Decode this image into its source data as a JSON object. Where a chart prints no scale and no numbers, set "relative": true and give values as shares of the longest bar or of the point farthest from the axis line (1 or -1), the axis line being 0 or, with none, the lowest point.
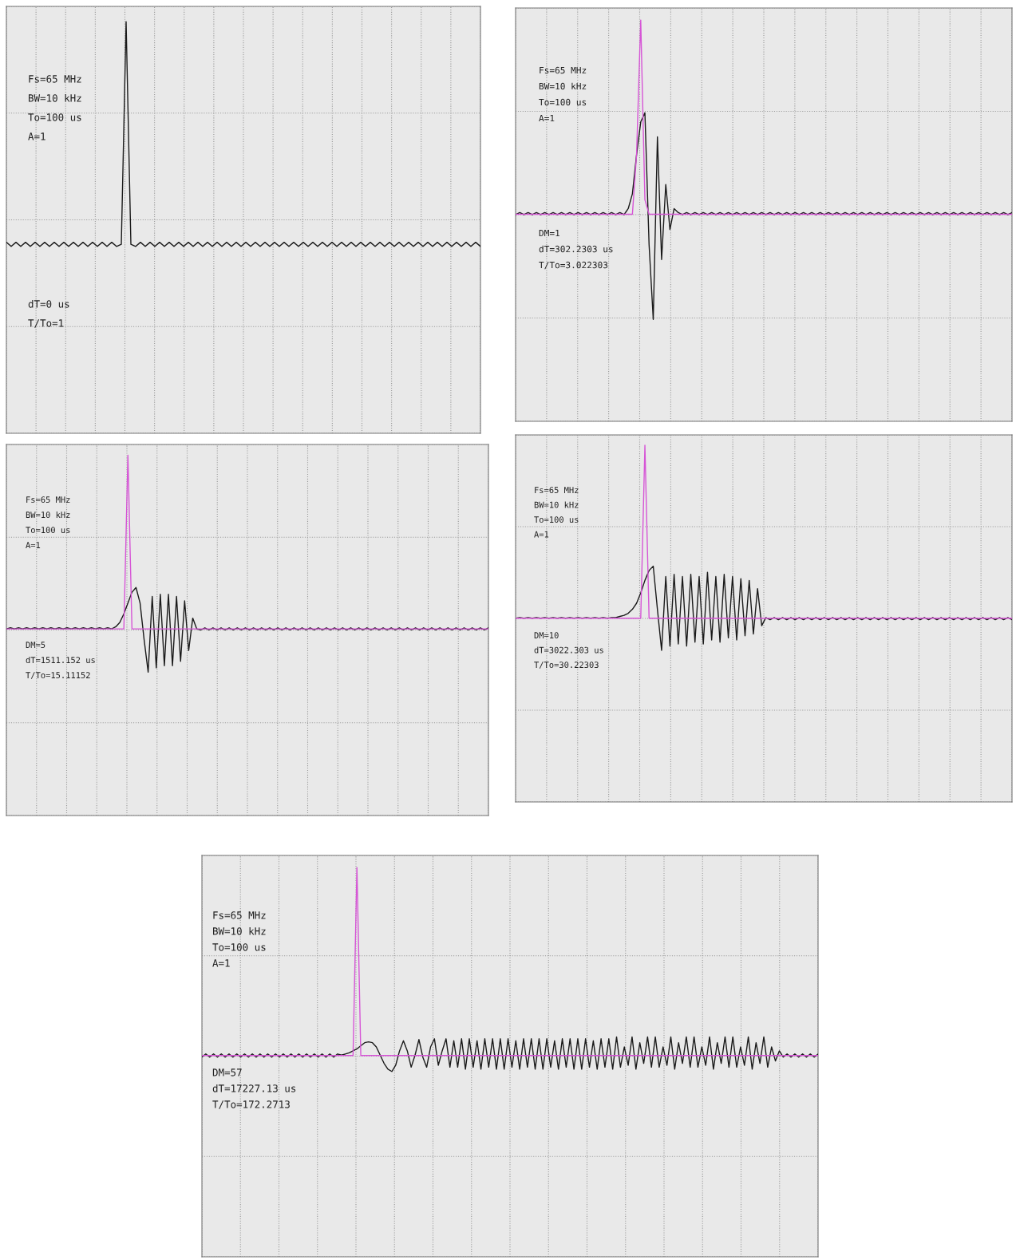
{
  "chart_data": [
    {
      "type": "line",
      "relative": true,
      "grid": true,
      "tick_labels": false,
      "categories": [
        null,
        null,
        null,
        null,
        null,
        null,
        null,
        null,
        null,
        null,
        null,
        null,
        null,
        null,
        null,
        null,
        null,
        null,
        null,
        null,
        null,
        null,
        null,
        null,
        null,
        null,
        null,
        null,
        null,
        null,
        null,
        null,
        null,
        null,
        null,
        null,
        null,
        null,
        null,
        null,
        null,
        null,
        null,
        null,
        null,
        null,
        null,
        null,
        null,
        null,
        null,
        null,
        null,
        null,
        null,
        null,
        null,
        null,
        null,
        null,
        null,
        null,
        null,
        null,
        null,
        null,
        null,
        null,
        null,
        null,
        null,
        null,
        null,
        null,
        null,
        null,
        null,
        null,
        null,
        null,
        null,
        null,
        null,
        null,
        null,
        null,
        null,
        null,
        null,
        null,
        null,
        null,
        null,
        null,
        null,
        null,
        null,
        null,
        null,
        null
      ],
      "series": [
        {
          "color": "#1a1a1a",
          "values": [
            0.464,
            0.454,
            0.464,
            0.454,
            0.464,
            0.454,
            0.464,
            0.454,
            0.464,
            0.454,
            0.464,
            0.454,
            0.464,
            0.454,
            0.464,
            0.454,
            0.464,
            0.454,
            0.464,
            0.454,
            0.464,
            0.454,
            0.464,
            0.454,
            0.459,
            1.0,
            0.459,
            0.454,
            0.464,
            0.454,
            0.464,
            0.454,
            0.464,
            0.454,
            0.464,
            0.454,
            0.464,
            0.454,
            0.464,
            0.454,
            0.464,
            0.454,
            0.464,
            0.454,
            0.464,
            0.454,
            0.464,
            0.454,
            0.464,
            0.454,
            0.464,
            0.454,
            0.464,
            0.454,
            0.464,
            0.454,
            0.464,
            0.454,
            0.464,
            0.454,
            0.464,
            0.454,
            0.464,
            0.454,
            0.464,
            0.454,
            0.464,
            0.454,
            0.464,
            0.454,
            0.464,
            0.454,
            0.464,
            0.454,
            0.464,
            0.454,
            0.464,
            0.454,
            0.464,
            0.454,
            0.464,
            0.454,
            0.464,
            0.454,
            0.464,
            0.454,
            0.464,
            0.454,
            0.464,
            0.454,
            0.464,
            0.454,
            0.464,
            0.454,
            0.464,
            0.454,
            0.464,
            0.454,
            0.464,
            0.454
          ]
        }
      ],
      "annotations": [
        "Fs=65 MHz",
        "BW=10 kHz",
        "To=100 us",
        "A=1",
        "dT=0 us",
        "T/To=1"
      ]
    },
    {
      "type": "line",
      "relative": true,
      "grid": true,
      "tick_labels": false,
      "categories": [
        null,
        null,
        null,
        null,
        null,
        null,
        null,
        null,
        null,
        null,
        null,
        null,
        null,
        null,
        null,
        null,
        null,
        null,
        null,
        null,
        null,
        null,
        null,
        null,
        null,
        null,
        null,
        null,
        null,
        null,
        null,
        null,
        null,
        null,
        null,
        null,
        null,
        null,
        null,
        null,
        null,
        null,
        null,
        null,
        null,
        null,
        null,
        null,
        null,
        null,
        null,
        null,
        null,
        null,
        null,
        null,
        null,
        null,
        null,
        null,
        null,
        null,
        null,
        null,
        null,
        null,
        null,
        null,
        null,
        null,
        null,
        null,
        null,
        null,
        null,
        null,
        null,
        null,
        null,
        null,
        null,
        null,
        null,
        null,
        null,
        null,
        null,
        null,
        null,
        null,
        null,
        null,
        null,
        null,
        null,
        null,
        null,
        null,
        null,
        null,
        null,
        null,
        null,
        null,
        null,
        null,
        null,
        null,
        null,
        null,
        null,
        null,
        null,
        null,
        null,
        null,
        null,
        null,
        null,
        null
      ],
      "series": [
        {
          "color": "#1a1a1a",
          "values": [
            0.515,
            0.52,
            0.515,
            0.52,
            0.515,
            0.52,
            0.515,
            0.52,
            0.515,
            0.52,
            0.515,
            0.52,
            0.515,
            0.52,
            0.515,
            0.52,
            0.515,
            0.52,
            0.515,
            0.52,
            0.515,
            0.52,
            0.515,
            0.52,
            0.515,
            0.52,
            0.515,
            0.53,
            0.567,
            0.664,
            0.746,
            0.769,
            0.44,
            0.254,
            0.709,
            0.403,
            0.59,
            0.478,
            0.53,
            0.52,
            0.515,
            0.52,
            0.515,
            0.52,
            0.515,
            0.52,
            0.515,
            0.52,
            0.515,
            0.52,
            0.515,
            0.52,
            0.515,
            0.52,
            0.515,
            0.52,
            0.515,
            0.52,
            0.515,
            0.52,
            0.515,
            0.52,
            0.515,
            0.52,
            0.515,
            0.52,
            0.515,
            0.52,
            0.515,
            0.52,
            0.515,
            0.52,
            0.515,
            0.52,
            0.515,
            0.52,
            0.515,
            0.52,
            0.515,
            0.52,
            0.515,
            0.52,
            0.515,
            0.52,
            0.515,
            0.52,
            0.515,
            0.52,
            0.515,
            0.52,
            0.515,
            0.52,
            0.515,
            0.52,
            0.515,
            0.52,
            0.515,
            0.52,
            0.515,
            0.52,
            0.515,
            0.52,
            0.515,
            0.52,
            0.515,
            0.52,
            0.515,
            0.52,
            0.515,
            0.52,
            0.515,
            0.52,
            0.515,
            0.52,
            0.515,
            0.52,
            0.515,
            0.52,
            0.515,
            0.52
          ]
        },
        {
          "color": "#d655d6",
          "values": [
            0.516,
            0.516,
            0.516,
            0.516,
            0.516,
            0.516,
            0.516,
            0.516,
            0.516,
            0.516,
            0.516,
            0.516,
            0.516,
            0.516,
            0.516,
            0.516,
            0.516,
            0.516,
            0.516,
            0.516,
            0.516,
            0.516,
            0.516,
            0.516,
            0.516,
            0.516,
            0.516,
            0.516,
            0.516,
            0.664,
            1.0,
            0.552,
            0.516,
            0.516,
            0.516,
            0.516,
            0.516,
            0.516,
            0.516,
            0.516,
            0.516,
            0.516,
            0.516,
            0.516,
            0.516,
            0.516,
            0.516,
            0.516,
            0.516,
            0.516,
            0.516,
            0.516,
            0.516,
            0.516,
            0.516,
            0.516,
            0.516,
            0.516,
            0.516,
            0.516,
            0.516,
            0.516,
            0.516,
            0.516,
            0.516,
            0.516,
            0.516,
            0.516,
            0.516,
            0.516,
            0.516,
            0.516,
            0.516,
            0.516,
            0.516,
            0.516,
            0.516,
            0.516,
            0.516,
            0.516,
            0.516,
            0.516,
            0.516,
            0.516,
            0.516,
            0.516,
            0.516,
            0.516,
            0.516,
            0.516,
            0.516,
            0.516,
            0.516,
            0.516,
            0.516,
            0.516,
            0.516,
            0.516,
            0.516,
            0.516,
            0.516,
            0.516,
            0.516,
            0.516,
            0.516,
            0.516,
            0.516,
            0.516,
            0.516,
            0.516,
            0.516,
            0.516,
            0.516,
            0.516,
            0.516,
            0.516,
            0.516,
            0.516,
            0.516,
            0.516
          ]
        }
      ],
      "annotations": [
        "Fs=65 MHz",
        "BW=10 kHz",
        "To=100 us",
        "A=1",
        "DM=1",
        "dT=302.2303 us",
        "T/To=3.022303"
      ]
    },
    {
      "type": "line",
      "relative": true,
      "grid": true,
      "tick_labels": false,
      "categories": [
        null,
        null,
        null,
        null,
        null,
        null,
        null,
        null,
        null,
        null,
        null,
        null,
        null,
        null,
        null,
        null,
        null,
        null,
        null,
        null,
        null,
        null,
        null,
        null,
        null,
        null,
        null,
        null,
        null,
        null,
        null,
        null,
        null,
        null,
        null,
        null,
        null,
        null,
        null,
        null,
        null,
        null,
        null,
        null,
        null,
        null,
        null,
        null,
        null,
        null,
        null,
        null,
        null,
        null,
        null,
        null,
        null,
        null,
        null,
        null,
        null,
        null,
        null,
        null,
        null,
        null,
        null,
        null,
        null,
        null,
        null,
        null,
        null,
        null,
        null,
        null,
        null,
        null,
        null,
        null,
        null,
        null,
        null,
        null,
        null,
        null,
        null,
        null,
        null,
        null,
        null,
        null,
        null,
        null,
        null,
        null,
        null,
        null,
        null,
        null,
        null,
        null,
        null,
        null,
        null,
        null,
        null,
        null,
        null,
        null,
        null,
        null,
        null,
        null,
        null,
        null,
        null,
        null,
        null,
        null
      ],
      "series": [
        {
          "color": "#1a1a1a",
          "values": [
            0.518,
            0.521,
            0.518,
            0.521,
            0.518,
            0.521,
            0.518,
            0.521,
            0.518,
            0.521,
            0.518,
            0.521,
            0.518,
            0.521,
            0.518,
            0.521,
            0.518,
            0.521,
            0.518,
            0.521,
            0.518,
            0.521,
            0.518,
            0.521,
            0.518,
            0.521,
            0.518,
            0.524,
            0.536,
            0.56,
            0.59,
            0.62,
            0.633,
            0.59,
            0.488,
            0.398,
            0.608,
            0.41,
            0.614,
            0.416,
            0.614,
            0.416,
            0.608,
            0.428,
            0.596,
            0.458,
            0.548,
            0.518,
            0.515,
            0.521,
            0.515,
            0.521,
            0.515,
            0.521,
            0.515,
            0.521,
            0.515,
            0.521,
            0.515,
            0.521,
            0.515,
            0.521,
            0.515,
            0.521,
            0.515,
            0.521,
            0.515,
            0.521,
            0.515,
            0.521,
            0.515,
            0.521,
            0.515,
            0.521,
            0.515,
            0.521,
            0.515,
            0.521,
            0.515,
            0.521,
            0.515,
            0.521,
            0.515,
            0.521,
            0.515,
            0.521,
            0.515,
            0.521,
            0.515,
            0.521,
            0.515,
            0.521,
            0.515,
            0.521,
            0.515,
            0.521,
            0.515,
            0.521,
            0.515,
            0.521,
            0.515,
            0.521,
            0.515,
            0.521,
            0.515,
            0.521,
            0.515,
            0.521,
            0.515,
            0.521,
            0.515,
            0.521,
            0.515,
            0.521,
            0.515,
            0.521,
            0.515,
            0.521,
            0.515,
            0.521
          ]
        },
        {
          "color": "#d655d6",
          "values": [
            0.518,
            0.518,
            0.518,
            0.518,
            0.518,
            0.518,
            0.518,
            0.518,
            0.518,
            0.518,
            0.518,
            0.518,
            0.518,
            0.518,
            0.518,
            0.518,
            0.518,
            0.518,
            0.518,
            0.518,
            0.518,
            0.518,
            0.518,
            0.518,
            0.518,
            0.518,
            0.518,
            0.518,
            0.518,
            0.518,
            1.0,
            0.518,
            0.518,
            0.518,
            0.518,
            0.518,
            0.518,
            0.518,
            0.518,
            0.518,
            0.518,
            0.518,
            0.518,
            0.518,
            0.518,
            0.518,
            0.518,
            0.518,
            0.518,
            0.518,
            0.518,
            0.518,
            0.518,
            0.518,
            0.518,
            0.518,
            0.518,
            0.518,
            0.518,
            0.518,
            0.518,
            0.518,
            0.518,
            0.518,
            0.518,
            0.518,
            0.518,
            0.518,
            0.518,
            0.518,
            0.518,
            0.518,
            0.518,
            0.518,
            0.518,
            0.518,
            0.518,
            0.518,
            0.518,
            0.518,
            0.518,
            0.518,
            0.518,
            0.518,
            0.518,
            0.518,
            0.518,
            0.518,
            0.518,
            0.518,
            0.518,
            0.518,
            0.518,
            0.518,
            0.518,
            0.518,
            0.518,
            0.518,
            0.518,
            0.518,
            0.518,
            0.518,
            0.518,
            0.518,
            0.518,
            0.518,
            0.518,
            0.518,
            0.518,
            0.518,
            0.518,
            0.518,
            0.518,
            0.518,
            0.518,
            0.518,
            0.518,
            0.518,
            0.518,
            0.518
          ]
        }
      ],
      "annotations": [
        "Fs=65 MHz",
        "BW=10 kHz",
        "To=100 us",
        "A=1",
        "DM=5",
        "dT=1511.152 us",
        "T/To=15.11152"
      ]
    },
    {
      "type": "line",
      "relative": true,
      "grid": true,
      "tick_labels": false,
      "categories": [
        null,
        null,
        null,
        null,
        null,
        null,
        null,
        null,
        null,
        null,
        null,
        null,
        null,
        null,
        null,
        null,
        null,
        null,
        null,
        null,
        null,
        null,
        null,
        null,
        null,
        null,
        null,
        null,
        null,
        null,
        null,
        null,
        null,
        null,
        null,
        null,
        null,
        null,
        null,
        null,
        null,
        null,
        null,
        null,
        null,
        null,
        null,
        null,
        null,
        null,
        null,
        null,
        null,
        null,
        null,
        null,
        null,
        null,
        null,
        null,
        null,
        null,
        null,
        null,
        null,
        null,
        null,
        null,
        null,
        null,
        null,
        null,
        null,
        null,
        null,
        null,
        null,
        null,
        null,
        null,
        null,
        null,
        null,
        null,
        null,
        null,
        null,
        null,
        null,
        null,
        null,
        null,
        null,
        null,
        null,
        null,
        null,
        null,
        null,
        null,
        null,
        null,
        null,
        null,
        null,
        null,
        null,
        null,
        null,
        null,
        null,
        null,
        null,
        null,
        null,
        null,
        null,
        null,
        null,
        null
      ],
      "series": [
        {
          "color": "#1a1a1a",
          "values": [
            0.515,
            0.517,
            0.515,
            0.517,
            0.515,
            0.517,
            0.515,
            0.517,
            0.515,
            0.517,
            0.515,
            0.517,
            0.515,
            0.517,
            0.515,
            0.517,
            0.515,
            0.517,
            0.515,
            0.517,
            0.515,
            0.517,
            0.515,
            0.517,
            0.517,
            0.52,
            0.523,
            0.529,
            0.54,
            0.557,
            0.586,
            0.621,
            0.649,
            0.661,
            0.54,
            0.425,
            0.632,
            0.437,
            0.638,
            0.443,
            0.632,
            0.437,
            0.638,
            0.448,
            0.632,
            0.443,
            0.644,
            0.454,
            0.632,
            0.448,
            0.638,
            0.46,
            0.632,
            0.454,
            0.626,
            0.466,
            0.621,
            0.471,
            0.598,
            0.494,
            0.517,
            0.511,
            0.517,
            0.511,
            0.517,
            0.511,
            0.517,
            0.511,
            0.517,
            0.511,
            0.517,
            0.511,
            0.517,
            0.511,
            0.517,
            0.511,
            0.517,
            0.511,
            0.517,
            0.511,
            0.517,
            0.511,
            0.517,
            0.511,
            0.517,
            0.511,
            0.517,
            0.511,
            0.517,
            0.511,
            0.517,
            0.511,
            0.517,
            0.511,
            0.517,
            0.511,
            0.517,
            0.511,
            0.517,
            0.511,
            0.517,
            0.511,
            0.517,
            0.511,
            0.517,
            0.511,
            0.517,
            0.511,
            0.517,
            0.511,
            0.517,
            0.511,
            0.517,
            0.511,
            0.517,
            0.511,
            0.517,
            0.511,
            0.517,
            0.511
          ]
        },
        {
          "color": "#d655d6",
          "values": [
            0.515,
            0.515,
            0.515,
            0.515,
            0.515,
            0.515,
            0.515,
            0.515,
            0.515,
            0.515,
            0.515,
            0.515,
            0.515,
            0.515,
            0.515,
            0.515,
            0.515,
            0.515,
            0.515,
            0.515,
            0.515,
            0.515,
            0.515,
            0.515,
            0.515,
            0.515,
            0.515,
            0.515,
            0.515,
            0.515,
            0.515,
            1.0,
            0.515,
            0.515,
            0.515,
            0.515,
            0.515,
            0.515,
            0.515,
            0.515,
            0.515,
            0.515,
            0.515,
            0.515,
            0.515,
            0.515,
            0.515,
            0.515,
            0.515,
            0.515,
            0.515,
            0.515,
            0.515,
            0.515,
            0.515,
            0.515,
            0.515,
            0.515,
            0.515,
            0.515,
            0.515,
            0.515,
            0.515,
            0.515,
            0.515,
            0.515,
            0.515,
            0.515,
            0.515,
            0.515,
            0.515,
            0.515,
            0.515,
            0.515,
            0.515,
            0.515,
            0.515,
            0.515,
            0.515,
            0.515,
            0.515,
            0.515,
            0.515,
            0.515,
            0.515,
            0.515,
            0.515,
            0.515,
            0.515,
            0.515,
            0.515,
            0.515,
            0.515,
            0.515,
            0.515,
            0.515,
            0.515,
            0.515,
            0.515,
            0.515,
            0.515,
            0.515,
            0.515,
            0.515,
            0.515,
            0.515,
            0.515,
            0.515,
            0.515,
            0.515,
            0.515,
            0.515,
            0.515,
            0.515,
            0.515,
            0.515,
            0.515,
            0.515,
            0.515,
            0.515
          ]
        }
      ],
      "annotations": [
        "Fs=65 MHz",
        "BW=10 kHz",
        "To=100 us",
        "A=1",
        "DM=10",
        "dT=3022.303 us",
        "T/To=30.22303"
      ]
    },
    {
      "type": "line",
      "relative": true,
      "grid": true,
      "tick_labels": false,
      "categories": [
        null,
        null,
        null,
        null,
        null,
        null,
        null,
        null,
        null,
        null,
        null,
        null,
        null,
        null,
        null,
        null,
        null,
        null,
        null,
        null,
        null,
        null,
        null,
        null,
        null,
        null,
        null,
        null,
        null,
        null,
        null,
        null,
        null,
        null,
        null,
        null,
        null,
        null,
        null,
        null,
        null,
        null,
        null,
        null,
        null,
        null,
        null,
        null,
        null,
        null,
        null,
        null,
        null,
        null,
        null,
        null,
        null,
        null,
        null,
        null,
        null,
        null,
        null,
        null,
        null,
        null,
        null,
        null,
        null,
        null,
        null,
        null,
        null,
        null,
        null,
        null,
        null,
        null,
        null,
        null,
        null,
        null,
        null,
        null,
        null,
        null,
        null,
        null,
        null,
        null,
        null,
        null,
        null,
        null,
        null,
        null,
        null,
        null,
        null,
        null,
        null,
        null,
        null,
        null,
        null,
        null,
        null,
        null,
        null,
        null,
        null,
        null,
        null,
        null,
        null,
        null,
        null,
        null,
        null,
        null,
        null,
        null,
        null,
        null,
        null,
        null,
        null,
        null,
        null,
        null,
        null,
        null,
        null,
        null,
        null,
        null,
        null,
        null,
        null,
        null,
        null,
        null,
        null,
        null,
        null,
        null,
        null,
        null,
        null,
        null,
        null,
        null,
        null,
        null,
        null,
        null,
        null,
        null,
        null,
        null
      ],
      "series": [
        {
          "color": "#1a1a1a",
          "values": [
            0.513,
            0.521,
            0.513,
            0.521,
            0.513,
            0.521,
            0.513,
            0.521,
            0.513,
            0.521,
            0.513,
            0.521,
            0.513,
            0.521,
            0.513,
            0.521,
            0.513,
            0.521,
            0.513,
            0.521,
            0.513,
            0.521,
            0.513,
            0.521,
            0.513,
            0.521,
            0.513,
            0.521,
            0.513,
            0.521,
            0.513,
            0.521,
            0.513,
            0.521,
            0.513,
            0.521,
            0.518,
            0.521,
            0.524,
            0.529,
            0.534,
            0.542,
            0.55,
            0.552,
            0.55,
            0.539,
            0.518,
            0.497,
            0.482,
            0.476,
            0.492,
            0.529,
            0.555,
            0.529,
            0.487,
            0.518,
            0.558,
            0.513,
            0.487,
            0.539,
            0.56,
            0.492,
            0.529,
            0.56,
            0.487,
            0.555,
            0.487,
            0.56,
            0.482,
            0.56,
            0.487,
            0.555,
            0.482,
            0.56,
            0.487,
            0.56,
            0.482,
            0.56,
            0.482,
            0.56,
            0.487,
            0.555,
            0.482,
            0.56,
            0.487,
            0.56,
            0.482,
            0.56,
            0.482,
            0.56,
            0.487,
            0.555,
            0.482,
            0.56,
            0.487,
            0.56,
            0.482,
            0.56,
            0.482,
            0.56,
            0.487,
            0.555,
            0.482,
            0.56,
            0.487,
            0.56,
            0.482,
            0.565,
            0.487,
            0.539,
            0.492,
            0.565,
            0.482,
            0.55,
            0.497,
            0.565,
            0.487,
            0.565,
            0.487,
            0.539,
            0.492,
            0.565,
            0.482,
            0.55,
            0.497,
            0.565,
            0.487,
            0.565,
            0.487,
            0.539,
            0.492,
            0.565,
            0.482,
            0.55,
            0.497,
            0.565,
            0.487,
            0.565,
            0.487,
            0.539,
            0.492,
            0.565,
            0.482,
            0.55,
            0.497,
            0.565,
            0.487,
            0.539,
            0.503,
            0.529,
            0.513,
            0.521,
            0.513,
            0.521,
            0.513,
            0.521,
            0.513,
            0.521,
            0.513,
            0.521
          ]
        },
        {
          "color": "#d655d6",
          "values": [
            0.517,
            0.517,
            0.517,
            0.517,
            0.517,
            0.517,
            0.517,
            0.517,
            0.517,
            0.517,
            0.517,
            0.517,
            0.517,
            0.517,
            0.517,
            0.517,
            0.517,
            0.517,
            0.517,
            0.517,
            0.517,
            0.517,
            0.517,
            0.517,
            0.517,
            0.517,
            0.517,
            0.517,
            0.517,
            0.517,
            0.517,
            0.517,
            0.517,
            0.517,
            0.517,
            0.517,
            0.517,
            0.517,
            0.517,
            0.517,
            1.0,
            0.517,
            0.517,
            0.517,
            0.517,
            0.517,
            0.517,
            0.517,
            0.517,
            0.517,
            0.517,
            0.517,
            0.517,
            0.517,
            0.517,
            0.517,
            0.517,
            0.517,
            0.517,
            0.517,
            0.517,
            0.517,
            0.517,
            0.517,
            0.517,
            0.517,
            0.517,
            0.517,
            0.517,
            0.517,
            0.517,
            0.517,
            0.517,
            0.517,
            0.517,
            0.517,
            0.517,
            0.517,
            0.517,
            0.517,
            0.517,
            0.517,
            0.517,
            0.517,
            0.517,
            0.517,
            0.517,
            0.517,
            0.517,
            0.517,
            0.517,
            0.517,
            0.517,
            0.517,
            0.517,
            0.517,
            0.517,
            0.517,
            0.517,
            0.517,
            0.517,
            0.517,
            0.517,
            0.517,
            0.517,
            0.517,
            0.517,
            0.517,
            0.517,
            0.517,
            0.517,
            0.517,
            0.517,
            0.517,
            0.517,
            0.517,
            0.517,
            0.517,
            0.517,
            0.517,
            0.517,
            0.517,
            0.517,
            0.517,
            0.517,
            0.517,
            0.517,
            0.517,
            0.517,
            0.517,
            0.517,
            0.517,
            0.517,
            0.517,
            0.517,
            0.517,
            0.517,
            0.517,
            0.517,
            0.517,
            0.517,
            0.517,
            0.517,
            0.517,
            0.517,
            0.517,
            0.517,
            0.517,
            0.517,
            0.517,
            0.517,
            0.517,
            0.517,
            0.517,
            0.517,
            0.517,
            0.517,
            0.517,
            0.517,
            0.517
          ]
        }
      ],
      "annotations": [
        "Fs=65 MHz",
        "BW=10 kHz",
        "To=100 us",
        "A=1",
        "DM=57",
        "dT=17227.13 us",
        "T/To=172.2713"
      ]
    }
  ]
}
